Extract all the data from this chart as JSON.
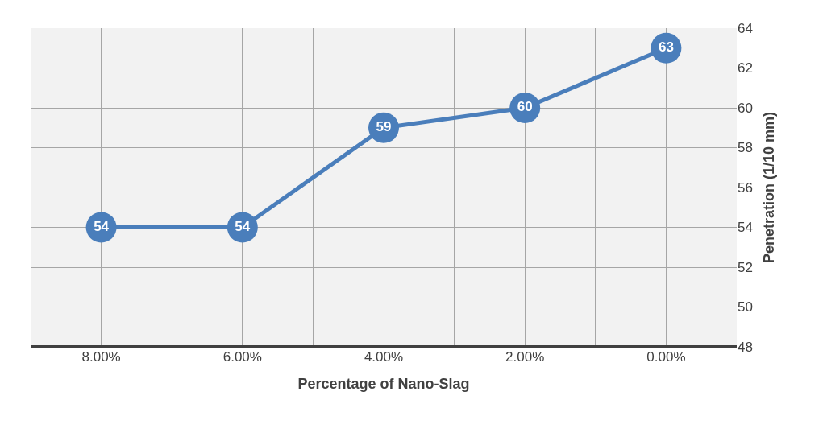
{
  "chart_data": {
    "type": "line",
    "xlabel": "Percentage of Nano-Slag",
    "ylabel": "Penetration (1/10 mm)",
    "x": [
      8,
      6,
      4,
      2,
      0
    ],
    "series": [
      {
        "color": "#4a7ebb",
        "values": [
          54,
          54,
          59,
          60,
          63
        ]
      }
    ],
    "xlim": [
      9,
      -1
    ],
    "xticks": [
      {
        "value": 9,
        "label": null
      },
      {
        "value": 8,
        "label": "8.00%"
      },
      {
        "value": 7,
        "label": null
      },
      {
        "value": 6,
        "label": "6.00%"
      },
      {
        "value": 5,
        "label": null
      },
      {
        "value": 4,
        "label": "4.00%"
      },
      {
        "value": 3,
        "label": null
      },
      {
        "value": 2,
        "label": "2.00%"
      },
      {
        "value": 1,
        "label": null
      },
      {
        "value": 0,
        "label": "0.00%"
      },
      {
        "value": -1,
        "label": null
      }
    ],
    "ylim": [
      48,
      64
    ],
    "yticks": [
      48,
      50,
      52,
      54,
      56,
      58,
      60,
      62,
      64
    ],
    "grid": true,
    "marker": "circle",
    "line_style": "solid",
    "data_labels": true
  }
}
